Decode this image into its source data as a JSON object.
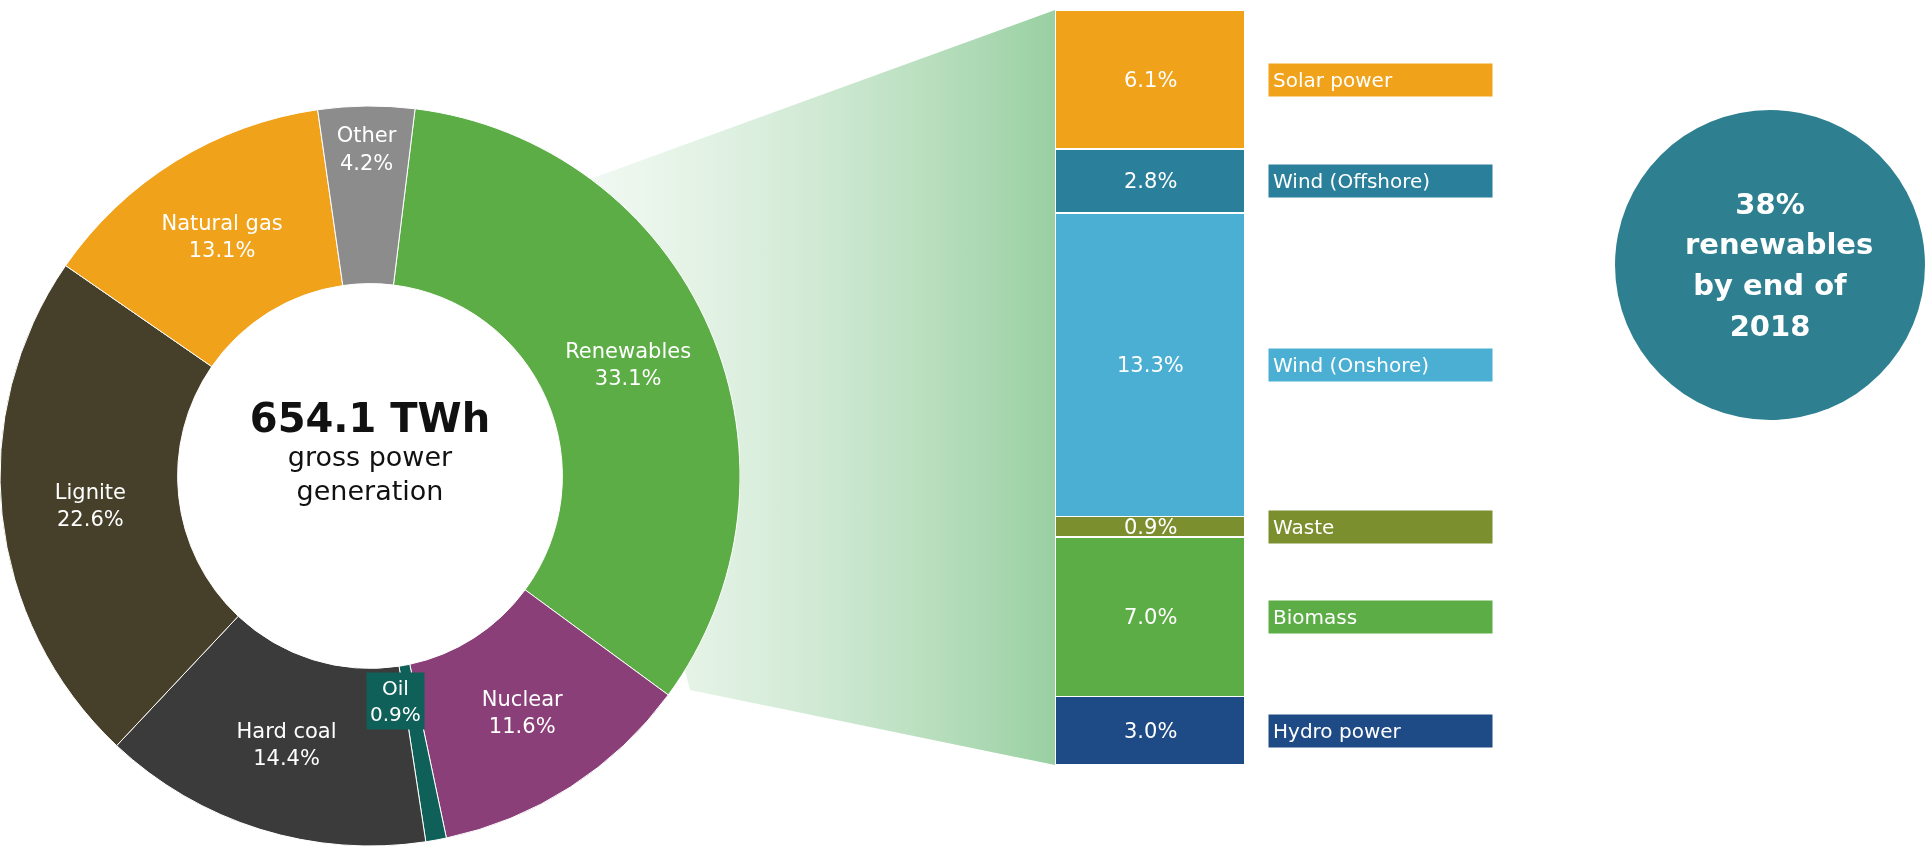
{
  "chart_data": [
    {
      "type": "donut",
      "categories": [
        "Renewables",
        "Nuclear",
        "Oil",
        "Hard coal",
        "Lignite",
        "Natural gas",
        "Other"
      ],
      "values": [
        33.1,
        11.6,
        0.9,
        14.4,
        22.6,
        13.1,
        4.2
      ],
      "value_labels": [
        "33.1%",
        "11.6%",
        "0.9%",
        "14.4%",
        "22.6%",
        "13.1%",
        "4.2%"
      ],
      "colors": [
        "#5cad46",
        "#8b3f78",
        "#10605a",
        "#3b3b3b",
        "#463f29",
        "#f0a21b",
        "#8c8c8c"
      ],
      "annotations": [
        "654.1 TWh",
        "gross power generation"
      ]
    },
    {
      "type": "bar",
      "stacked": true,
      "categories": [
        null
      ],
      "series": [
        {
          "name": "Hydro power",
          "color": "#1e4a86",
          "values": [
            3.0
          ],
          "value_labels": [
            "3.0%"
          ]
        },
        {
          "name": "Biomass",
          "color": "#5cad46",
          "values": [
            7.0
          ],
          "value_labels": [
            "7.0%"
          ]
        },
        {
          "name": "Waste",
          "color": "#7b8f2f",
          "values": [
            0.9
          ],
          "value_labels": [
            "0.9%"
          ]
        },
        {
          "name": "Wind (Onshore)",
          "color": "#4aafd2",
          "values": [
            13.3
          ],
          "value_labels": [
            "13.3%"
          ]
        },
        {
          "name": "Wind (Offshore)",
          "color": "#2a7f9b",
          "values": [
            2.8
          ],
          "value_labels": [
            "2.8%"
          ]
        },
        {
          "name": "Solar power",
          "color": "#f0a21b",
          "values": [
            6.1
          ],
          "value_labels": [
            "6.1%"
          ]
        }
      ]
    },
    {
      "type": "other",
      "title": "38% renewables by end of 2018",
      "color": "#2e8090"
    }
  ]
}
